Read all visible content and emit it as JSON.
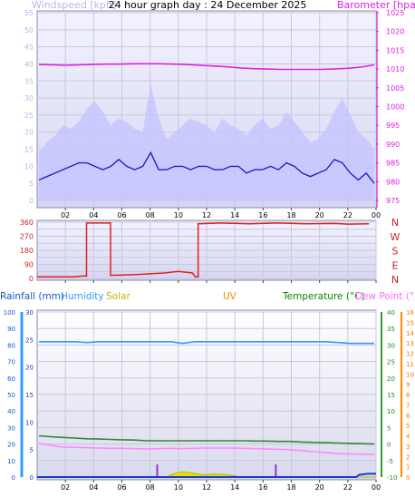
{
  "title": "24 hour graph day : 24 December 2025",
  "chart_data": [
    {
      "id": "wind-baro",
      "type": "line",
      "x_ticks": [
        "02",
        "04",
        "06",
        "08",
        "10",
        "12",
        "14",
        "16",
        "18",
        "20",
        "22",
        "00"
      ],
      "left_axis": {
        "label": "Windspeed [kph]",
        "range": [
          0,
          55
        ],
        "ticks": [
          0,
          5,
          10,
          15,
          20,
          25,
          30,
          35,
          40,
          45,
          50,
          55
        ],
        "color": "#aaaaee"
      },
      "right_axis": {
        "label": "Barometer [hpa]",
        "range": [
          975,
          1025
        ],
        "ticks": [
          975,
          980,
          985,
          990,
          995,
          1000,
          1005,
          1010,
          1015,
          1020,
          1025
        ],
        "color": "#e020e0"
      },
      "series": [
        {
          "axis": "right",
          "color": "#e020e0",
          "values": [
            1011.2,
            1011.1,
            1011.0,
            1011.1,
            1011.2,
            1011.3,
            1011.3,
            1011.4,
            1011.4,
            1011.4,
            1011.3,
            1011.2,
            1011.0,
            1010.8,
            1010.6,
            1010.3,
            1010.1,
            1010.0,
            1009.9,
            1009.9,
            1009.9,
            1009.9,
            1010.0,
            1010.2,
            1010.5,
            1011.1
          ]
        },
        {
          "axis": "left",
          "color": "#2222cc",
          "values": [
            6,
            7,
            8,
            9,
            10,
            11,
            11,
            10,
            9,
            10,
            12,
            10,
            9,
            10,
            14,
            9,
            9,
            10,
            10,
            9,
            10,
            10,
            9,
            9,
            10,
            10,
            8,
            9,
            9,
            10,
            9,
            11,
            10,
            8,
            7,
            8,
            9,
            12,
            11,
            8,
            6,
            8,
            5
          ]
        },
        {
          "axis": "left",
          "color": "#c4c4ff",
          "fill": true,
          "values": [
            14,
            17,
            19,
            22,
            21,
            23,
            27,
            29,
            26,
            22,
            24,
            23,
            21,
            20,
            34,
            24,
            18,
            20,
            22,
            24,
            23,
            22,
            20,
            24,
            22,
            21,
            19,
            22,
            24,
            21,
            22,
            26,
            23,
            20,
            17,
            18,
            21,
            26,
            30,
            25,
            20,
            18,
            15
          ]
        }
      ]
    },
    {
      "id": "wind-direction",
      "type": "line",
      "x_ticks": [
        "02",
        "04",
        "06",
        "08",
        "10",
        "12",
        "14",
        "16",
        "18",
        "20",
        "22",
        "00"
      ],
      "left_axis": {
        "range": [
          0,
          360
        ],
        "ticks": [
          0,
          45,
          90,
          135,
          180,
          225,
          270,
          315,
          360
        ],
        "tick_labels": [
          "0",
          "45",
          "90",
          "135",
          "180",
          "225",
          "270",
          "315",
          "360"
        ]
      },
      "right_labels": [
        "N",
        "W",
        "S",
        "E",
        "N"
      ],
      "series": [
        {
          "color": "#e02020",
          "points": [
            [
              0,
              10
            ],
            [
              2.6,
              10
            ],
            [
              3.2,
              15
            ],
            [
              3.5,
              15
            ],
            [
              3.5,
              355
            ],
            [
              5.2,
              355
            ],
            [
              5.2,
              20
            ],
            [
              7.0,
              25
            ],
            [
              9.0,
              35
            ],
            [
              10.0,
              45
            ],
            [
              11.0,
              35
            ],
            [
              11.2,
              10
            ],
            [
              11.4,
              10
            ],
            [
              11.4,
              350
            ],
            [
              13.0,
              355
            ],
            [
              15.0,
              350
            ],
            [
              17.0,
              355
            ],
            [
              19.0,
              350
            ],
            [
              21.0,
              352
            ],
            [
              22.0,
              348
            ],
            [
              23.5,
              350
            ]
          ]
        }
      ]
    },
    {
      "id": "rain-humidity-temp",
      "type": "line",
      "x_ticks": [
        "02",
        "04",
        "06",
        "08",
        "10",
        "12",
        "14",
        "16",
        "18",
        "20",
        "22",
        "00"
      ],
      "legend": [
        {
          "label": "Rainfall (mm)",
          "color": "#1a55cc"
        },
        {
          "label": "Humidity",
          "color": "#3399ff"
        },
        {
          "label": "Solar",
          "color": "#b8b800"
        },
        {
          "label": "UV",
          "color": "#ff8800"
        },
        {
          "label": "Temperature (°C)",
          "color": "#008800"
        },
        {
          "label": "Dew Point (°C)",
          "color": "#ff66ff"
        }
      ],
      "axis_humidity": {
        "range": [
          0,
          100
        ],
        "ticks": [
          0,
          10,
          20,
          30,
          40,
          50,
          60,
          70,
          80,
          90,
          100
        ]
      },
      "axis_rain": {
        "range": [
          0,
          30
        ],
        "ticks": [
          0,
          5,
          10,
          15,
          20,
          25,
          30
        ]
      },
      "axis_temp": {
        "range": [
          -10,
          40
        ],
        "ticks": [
          -10,
          -5,
          0,
          5,
          10,
          15,
          20,
          25,
          30,
          35,
          40
        ]
      },
      "axis_uv": {
        "range": [
          0,
          16
        ],
        "ticks": [
          0,
          1,
          2,
          3,
          4,
          5,
          6,
          7,
          8,
          9,
          10,
          11,
          12,
          13,
          14,
          15,
          16
        ]
      },
      "series": [
        {
          "name": "Humidity",
          "axis": "humidity",
          "color": "#3399ff",
          "values": [
            82,
            82,
            82,
            82,
            81.5,
            82,
            82,
            82,
            82,
            82,
            82,
            82,
            81,
            82,
            82,
            82,
            82,
            82,
            82,
            82,
            82,
            82,
            82,
            82,
            82,
            81.5,
            81,
            81,
            81
          ]
        },
        {
          "name": "Temperature",
          "axis": "temp",
          "color": "#338833",
          "values": [
            2.5,
            2.2,
            2.0,
            1.8,
            1.6,
            1.5,
            1.4,
            1.3,
            1.2,
            1.0,
            1.0,
            1.0,
            1.0,
            1.0,
            1.0,
            1.0,
            1.0,
            1.0,
            0.9,
            0.9,
            0.8,
            0.8,
            0.6,
            0.5,
            0.4,
            0.3,
            0.2,
            0.1,
            0.0
          ]
        },
        {
          "name": "Dew Point",
          "axis": "temp",
          "color": "#ff88ff",
          "values": [
            0.2,
            -0.4,
            -0.9,
            -1.0,
            -1.1,
            -1.2,
            -1.3,
            -1.3,
            -1.4,
            -1.5,
            -1.4,
            -1.3,
            -1.4,
            -1.3,
            -1.2,
            -1.2,
            -1.2,
            -1.3,
            -1.4,
            -1.5,
            -1.6,
            -1.7,
            -2.0,
            -2.3,
            -2.6,
            -2.9,
            -3.0,
            -3.1,
            -3.1
          ]
        },
        {
          "name": "Rainfall",
          "axis": "rain",
          "color": "#1a3bcc",
          "points": [
            [
              0,
              0
            ],
            [
              22.6,
              0
            ],
            [
              22.8,
              0.4
            ],
            [
              23.4,
              0.6
            ],
            [
              24,
              0.6
            ]
          ]
        },
        {
          "name": "UV",
          "axis": "uv",
          "color": "#b8b800",
          "points": [
            [
              0,
              0
            ],
            [
              9.2,
              0
            ],
            [
              9.6,
              0.3
            ],
            [
              10.2,
              0.5
            ],
            [
              11.0,
              0.4
            ],
            [
              11.8,
              0.2
            ],
            [
              12.6,
              0.3
            ],
            [
              13.6,
              0.2
            ],
            [
              14.5,
              0
            ],
            [
              24,
              0
            ]
          ]
        }
      ],
      "markers": [
        8.5,
        16.9
      ],
      "marker_color": "#9933cc"
    }
  ]
}
